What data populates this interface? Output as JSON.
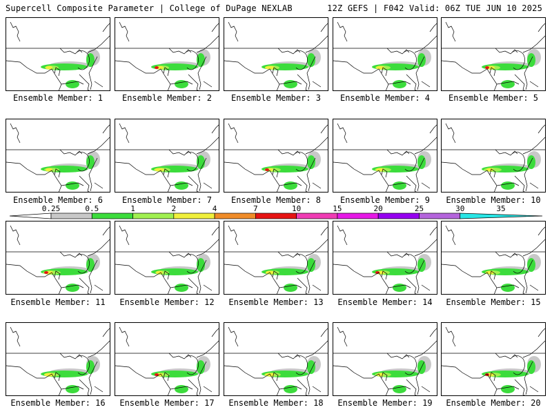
{
  "header": {
    "left": "Supercell Composite Parameter | College of DuPage NEXLAB",
    "right": "12Z GEFS | F042 Valid: 06Z TUE JUN 10 2025"
  },
  "panel_label_prefix": "Ensemble Member: ",
  "members": [
    {
      "label": "Ensemble Member: 1"
    },
    {
      "label": "Ensemble Member: 2"
    },
    {
      "label": "Ensemble Member: 3"
    },
    {
      "label": "Ensemble Member: 4"
    },
    {
      "label": "Ensemble Member: 5"
    },
    {
      "label": "Ensemble Member: 6"
    },
    {
      "label": "Ensemble Member: 7"
    },
    {
      "label": "Ensemble Member: 8"
    },
    {
      "label": "Ensemble Member: 9"
    },
    {
      "label": "Ensemble Member: 10"
    },
    {
      "label": "Ensemble Member: 11"
    },
    {
      "label": "Ensemble Member: 12"
    },
    {
      "label": "Ensemble Member: 13"
    },
    {
      "label": "Ensemble Member: 14"
    },
    {
      "label": "Ensemble Member: 15"
    },
    {
      "label": "Ensemble Member: 16"
    },
    {
      "label": "Ensemble Member: 17"
    },
    {
      "label": "Ensemble Member: 18"
    },
    {
      "label": "Ensemble Member: 19"
    },
    {
      "label": "Ensemble Member: 20"
    }
  ],
  "colorbar": {
    "ticks": [
      "0.25",
      "0.5",
      "1",
      "2",
      "4",
      "7",
      "10",
      "15",
      "20",
      "25",
      "30",
      "35"
    ],
    "colors": [
      "#c8c8c8",
      "#3cdc3c",
      "#a0f050",
      "#f0f03c",
      "#f08c28",
      "#e61414",
      "#f03cb4",
      "#e619e6",
      "#9600f0",
      "#b464dc",
      "#28e6e6"
    ]
  }
}
